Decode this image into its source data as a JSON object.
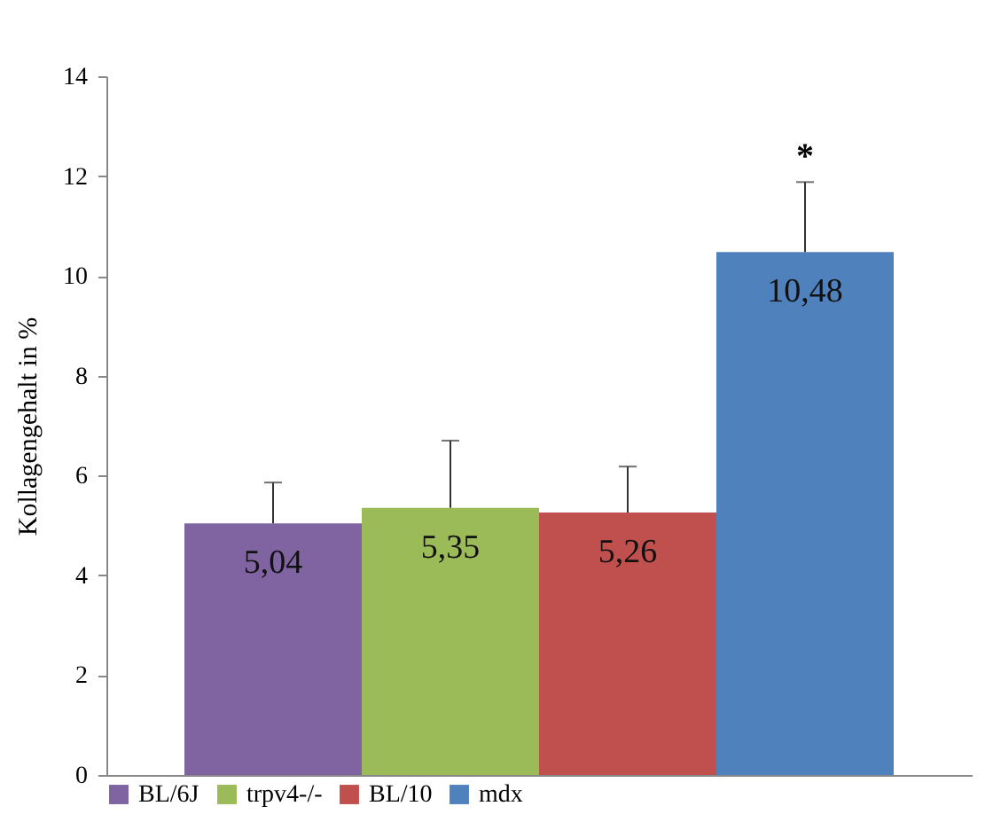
{
  "chart_data": {
    "type": "bar",
    "ylabel": "Kollagengehalt in %",
    "categories": [
      null,
      null,
      null,
      null
    ],
    "series": [
      {
        "name": "BL/6J",
        "color": "#8064a2",
        "values": [
          5.04,
          null,
          null,
          null
        ],
        "errors": [
          [
            5.04,
            5.86
          ],
          null,
          null,
          null
        ],
        "value_labels": [
          "5,04",
          null,
          null,
          null
        ]
      },
      {
        "name": "trpv4-/-",
        "color": "#9bbb59",
        "values": [
          null,
          5.35,
          null,
          null
        ],
        "errors": [
          null,
          [
            5.35,
            6.7
          ],
          null,
          null
        ],
        "value_labels": [
          null,
          "5,35",
          null,
          null
        ]
      },
      {
        "name": "BL/10",
        "color": "#c0504d",
        "values": [
          null,
          null,
          5.26,
          null
        ],
        "errors": [
          null,
          null,
          [
            5.26,
            6.18
          ],
          null
        ],
        "value_labels": [
          null,
          null,
          "5,26",
          null
        ]
      },
      {
        "name": "mdx",
        "color": "#4f81bd",
        "values": [
          null,
          null,
          null,
          10.48
        ],
        "errors": [
          null,
          null,
          null,
          [
            10.48,
            11.88
          ]
        ],
        "value_labels": [
          null,
          null,
          null,
          "10,48"
        ]
      }
    ],
    "annotations": [
      "*"
    ],
    "ylim": [
      0,
      14
    ],
    "yticks": [
      0,
      2,
      4,
      6,
      8,
      10,
      12,
      14
    ],
    "tick_labels": "y",
    "grid": false,
    "legend": "bottom"
  }
}
